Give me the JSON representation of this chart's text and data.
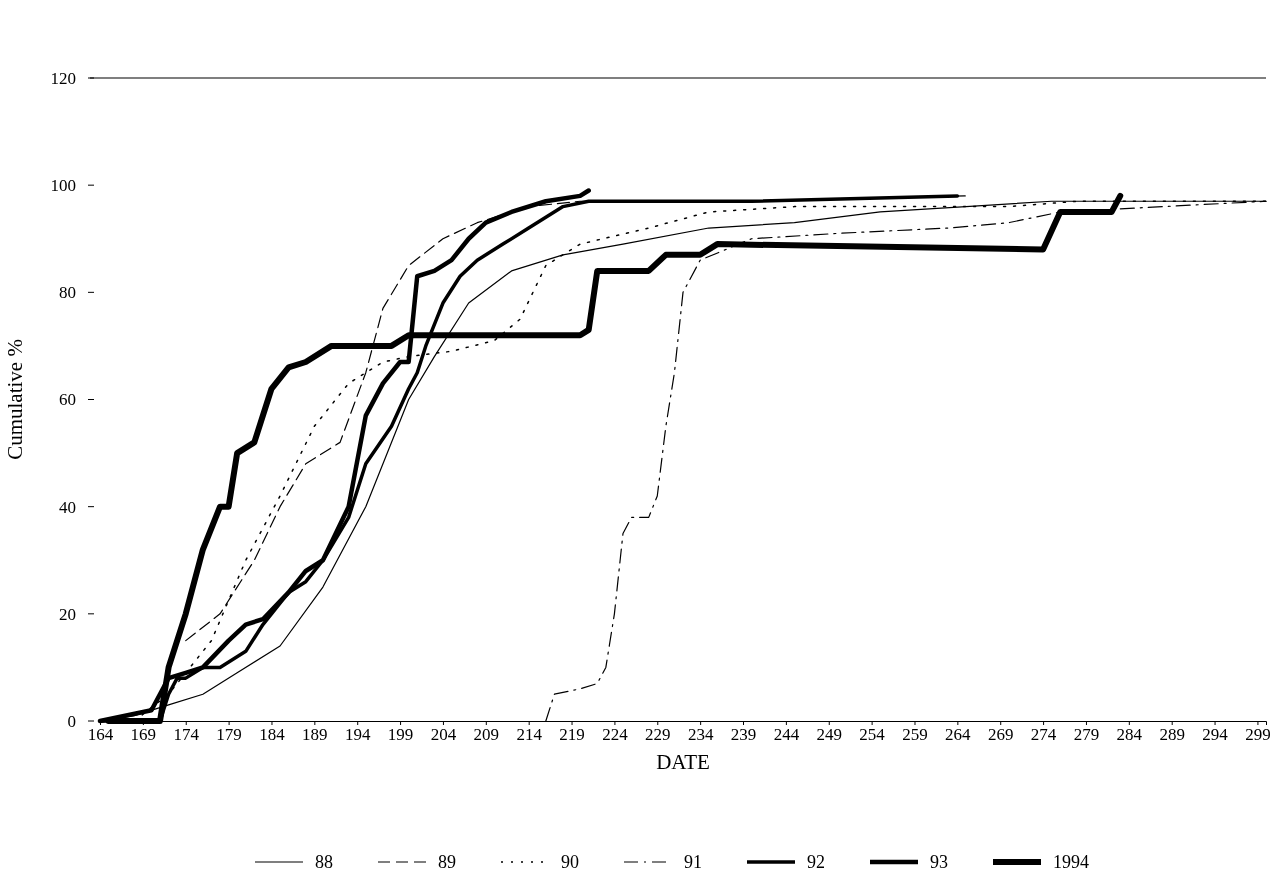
{
  "chart_data": {
    "type": "line",
    "xlabel": "DATE",
    "ylabel": "Cumulative %",
    "xlim": [
      164,
      300
    ],
    "xticks": [
      164,
      169,
      174,
      179,
      184,
      189,
      194,
      199,
      204,
      209,
      214,
      219,
      224,
      229,
      234,
      239,
      244,
      249,
      254,
      259,
      264,
      269,
      274,
      279,
      284,
      289,
      294,
      299
    ],
    "ylim": [
      0,
      120
    ],
    "yticks": [
      0,
      20,
      40,
      60,
      80,
      100,
      120
    ],
    "grid": false,
    "legend": "bottom",
    "marker": "none",
    "series": [
      {
        "name": "88",
        "color": "#000000",
        "line_style": "solid",
        "x": [
          164,
          168,
          172,
          176,
          180,
          185,
          190,
          195,
          200,
          203,
          207,
          212,
          218,
          225,
          235,
          245,
          255,
          265,
          275,
          285,
          300
        ],
        "values": [
          0,
          1,
          3,
          5,
          9,
          14,
          25,
          40,
          60,
          68,
          78,
          84,
          87,
          89,
          92,
          93,
          95,
          96,
          97,
          97,
          97
        ]
      },
      {
        "name": "89",
        "color": "#000000",
        "line_style": "dashed",
        "x": [
          174,
          178,
          182,
          185,
          188,
          192,
          195,
          197,
          200,
          204,
          208,
          214,
          220,
          240,
          265
        ],
        "values": [
          15,
          20,
          30,
          40,
          48,
          52,
          65,
          77,
          85,
          90,
          93,
          96,
          97,
          97,
          98
        ]
      },
      {
        "name": "90",
        "color": "#000000",
        "line_style": "dotted",
        "x": [
          168,
          172,
          177,
          181,
          185,
          189,
          193,
          197,
          200,
          205,
          210,
          213,
          216,
          220,
          228,
          235,
          245,
          260,
          270,
          278,
          300
        ],
        "values": [
          0,
          5,
          15,
          30,
          42,
          55,
          63,
          67,
          68,
          69,
          71,
          75,
          85,
          89,
          92,
          95,
          96,
          96,
          96,
          97,
          97
        ]
      },
      {
        "name": "91",
        "color": "#000000",
        "line_style": "dashdot",
        "x": [
          216,
          217,
          220,
          222,
          223,
          224,
          225,
          226,
          228,
          229,
          230,
          231,
          232,
          234,
          237,
          240,
          250,
          263,
          270,
          276,
          300
        ],
        "values": [
          0,
          5,
          6,
          7,
          10,
          20,
          35,
          38,
          38,
          42,
          55,
          65,
          80,
          86,
          88,
          90,
          91,
          92,
          93,
          95,
          97
        ]
      },
      {
        "name": "92",
        "color": "#000000",
        "line_style": "solid",
        "x": [
          164,
          171,
          172,
          173,
          174,
          176,
          178,
          181,
          183,
          186,
          188,
          190,
          193,
          195,
          198,
          200,
          201,
          202,
          204,
          206,
          208,
          211,
          214,
          218,
          221,
          240,
          264
        ],
        "values": [
          0,
          0,
          5,
          8,
          8,
          10,
          10,
          13,
          18,
          24,
          26,
          30,
          38,
          48,
          55,
          62,
          65,
          70,
          78,
          83,
          86,
          89,
          92,
          96,
          97,
          97,
          98
        ]
      },
      {
        "name": "93",
        "color": "#000000",
        "line_style": "solid",
        "x": [
          164,
          170,
          172,
          174,
          176,
          179,
          181,
          183,
          186,
          188,
          190,
          193,
          195,
          197,
          199,
          200,
          201,
          203,
          205,
          207,
          209,
          212,
          216,
          220,
          221
        ],
        "values": [
          0,
          2,
          8,
          9,
          10,
          15,
          18,
          19,
          24,
          28,
          30,
          40,
          57,
          63,
          67,
          67,
          83,
          84,
          86,
          90,
          93,
          95,
          97,
          98,
          99
        ]
      },
      {
        "name": "1994",
        "color": "#000000",
        "line_style": "solid",
        "x": [
          165,
          171,
          172,
          174,
          176,
          178,
          179,
          180,
          182,
          184,
          186,
          188,
          191,
          198,
          200,
          220,
          221,
          222,
          228,
          230,
          234,
          236,
          274,
          276,
          282,
          283
        ],
        "values": [
          0,
          0,
          10,
          20,
          32,
          40,
          40,
          50,
          52,
          62,
          66,
          67,
          70,
          70,
          72,
          72,
          73,
          84,
          84,
          87,
          87,
          89,
          88,
          95,
          95,
          98
        ]
      }
    ]
  }
}
